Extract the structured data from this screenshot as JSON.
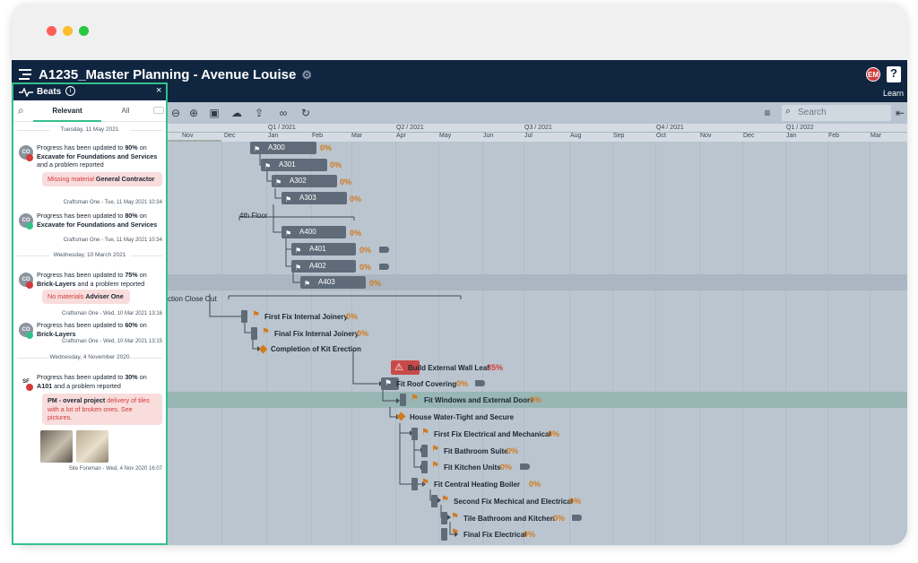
{
  "app": {
    "title": "A1235_Master Planning - Avenue Louise",
    "user_initials": "EM",
    "help_label": "?",
    "learn_label": "Learn"
  },
  "toolbar": {
    "search_placeholder": "Search"
  },
  "timeline": {
    "quarters": [
      "Q1 / 2021",
      "Q2 / 2021",
      "Q3 / 2021",
      "Q4 / 2021",
      "Q1 / 2022"
    ],
    "months": [
      "Nov",
      "Dec",
      "Jan",
      "Feb",
      "Mar",
      "Apr",
      "May",
      "Jun",
      "Jul",
      "Aug",
      "Sep",
      "Oct",
      "Nov",
      "Dec",
      "Jan",
      "Feb",
      "Mar"
    ]
  },
  "gantt": {
    "bars": [
      {
        "label": "A300",
        "pct": "0%"
      },
      {
        "label": "A301",
        "pct": "0%"
      },
      {
        "label": "A302",
        "pct": "0%"
      },
      {
        "label": "A303",
        "pct": "0%"
      },
      {
        "label": "A400",
        "pct": "0%"
      },
      {
        "label": "A401",
        "pct": "0%"
      },
      {
        "label": "A402",
        "pct": "0%"
      },
      {
        "label": "A403",
        "pct": "0%"
      }
    ],
    "group_4th_floor": "4th Floor",
    "group_close_out": "ction Close Out",
    "tasks": [
      {
        "label": "First Fix Internal Joinery",
        "pct": "0%"
      },
      {
        "label": "Final Fix Internal Joinery",
        "pct": "0%"
      },
      {
        "label": "Completion of Kit Erection",
        "pct": ""
      },
      {
        "label": "Build External Wall Leaf",
        "pct": "35%"
      },
      {
        "label": "Fit Roof Covering",
        "pct": "0%"
      },
      {
        "label": "Fit Windows and External Doors",
        "pct": "0%"
      },
      {
        "label": "House Water-Tight and Secure",
        "pct": ""
      },
      {
        "label": "First Fix Electrical and Mechanical",
        "pct": "0%"
      },
      {
        "label": "Fit Bathroom Suite",
        "pct": "0%"
      },
      {
        "label": "Fit Kitchen Units",
        "pct": "0%"
      },
      {
        "label": "Fit Central Heating Boiler",
        "pct": "0%"
      },
      {
        "label": "Second Fix Mechical and Electrical",
        "pct": "0%"
      },
      {
        "label": "Tile Bathroom and Kitchen",
        "pct": "0%"
      },
      {
        "label": "Final Fix Electrical",
        "pct": "0%"
      }
    ]
  },
  "beats": {
    "title": "Beats",
    "tabs": [
      "Relevant",
      "All"
    ],
    "date_1": "Tuesday, 11 May 2021",
    "date_2": "Wednesday, 10 March 2021",
    "date_3": "Wednesday, 4 November 2020",
    "items": [
      {
        "avatar": "CO",
        "pre": "Progress has been updated to ",
        "pct": "90%",
        "mid": " on ",
        "target": "Excavate for Foundations and Services",
        "post": " and a problem reported",
        "note_red": "Missing material ",
        "note_who": "General Contractor",
        "meta": "Craftsman One - Tue, 11 May 2021 10:34"
      },
      {
        "avatar": "CO",
        "pre": "Progress has been updated to ",
        "pct": "80%",
        "mid": " on ",
        "target": "Excavate for Foundations and Services",
        "post": "",
        "meta": "Craftsman One - Tue, 11 May 2021 10:34"
      },
      {
        "avatar": "CO",
        "pre": "Progress has been updated to ",
        "pct": "75%",
        "mid": " on ",
        "target": "Brick-Layers",
        "post": " and a problem reported",
        "note_red": "No materials ",
        "note_who": "Adviser One",
        "meta": "Craftsman One - Wed, 10 Mar 2021 13:16"
      },
      {
        "avatar": "CO",
        "pre": "Progress has been updated to ",
        "pct": "60%",
        "mid": " on ",
        "target": "Brick-Layers",
        "post": "",
        "meta": "Craftsman One - Wed, 10 Mar 2021 13:15"
      },
      {
        "avatar": "SF",
        "pre": "Progress has been updated to ",
        "pct": "30%",
        "mid": " on ",
        "target": "A101",
        "post": " and a problem reported",
        "note_who": "PM - overal project",
        "note_red": " delivery of tiles with a lot of broken ones. See pictures.",
        "meta": "Site Foreman - Wed, 4 Nov 2020 16:07"
      }
    ]
  },
  "colors": {
    "appbar": "#0f2540",
    "accent_green": "#35c08a",
    "progress_orange": "#d17a1f",
    "problem_red": "#d13b3b"
  }
}
